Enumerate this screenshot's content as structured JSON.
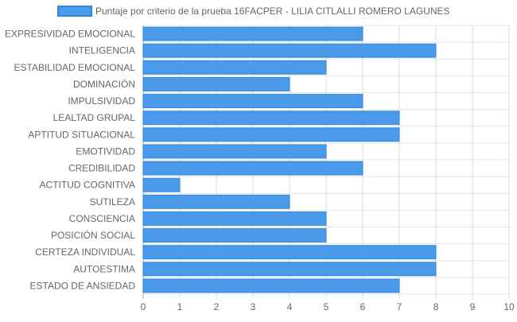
{
  "chart_data": {
    "type": "bar",
    "orientation": "horizontal",
    "categories": [
      "EXPRESIVIDAD EMOCIONAL",
      "INTELIGENCIA",
      "ESTABILIDAD EMOCIONAL",
      "DOMINACIÓN",
      "IMPULSIVIDAD",
      "LEALTAD GRUPAL",
      "APTITUD SITUACIONAL",
      "EMOTIVIDAD",
      "CREDIBILIDAD",
      "ACTITUD COGNITIVA",
      "SUTILEZA",
      "CONSCIENCIA",
      "POSICIÓN SOCIAL",
      "CERTEZA INDIVIDUAL",
      "AUTOESTIMA",
      "ESTADO DE ANSIEDAD"
    ],
    "series": [
      {
        "name": "Puntaje por criterio de la prueba 16FACPER - LILIA CITLALLI ROMERO LAGUNES",
        "values": [
          6,
          8,
          5,
          4,
          6,
          7,
          7,
          5,
          6,
          1,
          4,
          5,
          5,
          8,
          8,
          7
        ],
        "color": "#4a9ae9",
        "border_color": "#2f86e0"
      }
    ],
    "xlim": [
      0,
      10
    ],
    "x_ticks": [
      "0",
      "1",
      "2",
      "3",
      "4",
      "5",
      "6",
      "7",
      "8",
      "9",
      "10"
    ],
    "grid": true,
    "legend_position": "top",
    "title": "",
    "xlabel": "",
    "ylabel": ""
  }
}
